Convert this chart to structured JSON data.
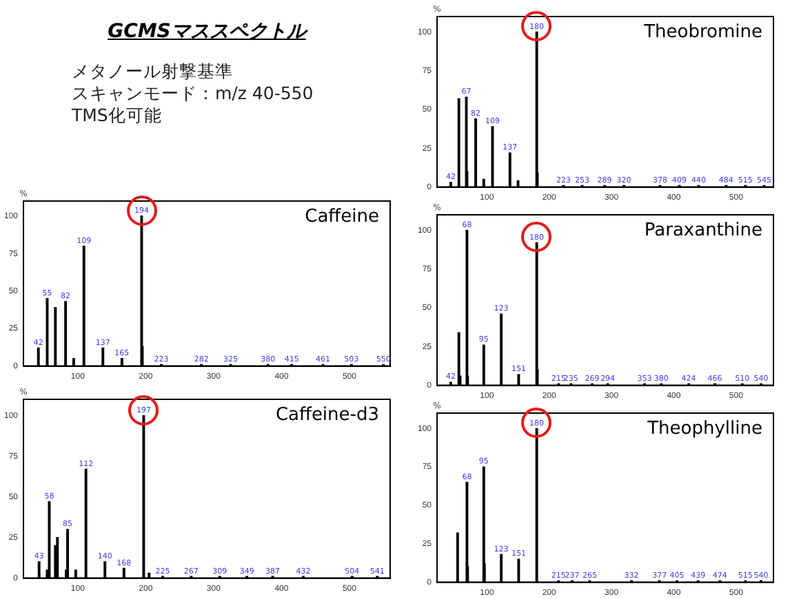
{
  "chart_data": [
    {
      "type": "other",
      "title": "GCMSマススペクトル",
      "annotations": [
        "メタノール射撃基準",
        "スキャンモード：m/z 40-550",
        "TMS化可能"
      ]
    },
    {
      "type": "bar",
      "title": "Theobromine",
      "ylabel": "%",
      "xlim": [
        20,
        560
      ],
      "ylim": [
        0,
        110
      ],
      "xticks": [
        100,
        200,
        300,
        400,
        500
      ],
      "yticks": [
        0,
        25,
        50,
        75,
        100
      ],
      "grid": false,
      "legend": false,
      "color": "#000000",
      "x": [
        42,
        55,
        67,
        68,
        82,
        95,
        109,
        137,
        150,
        179,
        180,
        181,
        223,
        253,
        289,
        320,
        378,
        409,
        440,
        484,
        515,
        545
      ],
      "values": [
        3,
        57,
        58,
        10,
        44,
        5,
        39,
        22,
        4,
        null,
        100,
        9,
        1,
        1,
        1,
        1,
        1,
        1,
        1,
        1,
        1,
        1
      ],
      "annotations": [
        {
          "text": "42",
          "x": 42,
          "y": 3
        },
        {
          "text": "67",
          "x": 67,
          "y": 58
        },
        {
          "text": "82",
          "x": 82,
          "y": 44
        },
        {
          "text": "109",
          "x": 109,
          "y": 39
        },
        {
          "text": "137",
          "x": 137,
          "y": 22
        },
        {
          "text": "180",
          "x": 180,
          "y": 100
        },
        {
          "text": "223",
          "x": 223,
          "y": 1
        },
        {
          "text": "253",
          "x": 253,
          "y": 1
        },
        {
          "text": "289",
          "x": 289,
          "y": 1
        },
        {
          "text": "320",
          "x": 320,
          "y": 1
        },
        {
          "text": "378",
          "x": 378,
          "y": 1
        },
        {
          "text": "409",
          "x": 409,
          "y": 1
        },
        {
          "text": "440",
          "x": 440,
          "y": 1
        },
        {
          "text": "484",
          "x": 484,
          "y": 1
        },
        {
          "text": "515",
          "x": 515,
          "y": 1
        },
        {
          "text": "545",
          "x": 545,
          "y": 1
        }
      ]
    },
    {
      "type": "bar",
      "title": "Caffeine",
      "ylabel": "%",
      "xlim": [
        20,
        560
      ],
      "ylim": [
        0,
        110
      ],
      "xticks": [
        100,
        200,
        300,
        400,
        500
      ],
      "yticks": [
        0,
        25,
        50,
        75,
        100
      ],
      "grid": false,
      "legend": false,
      "color": "#000000",
      "x": [
        42,
        55,
        67,
        82,
        94,
        109,
        137,
        165,
        193,
        194,
        195,
        223,
        282,
        325,
        380,
        415,
        461,
        503,
        550
      ],
      "values": [
        12,
        45,
        39,
        43,
        5,
        80,
        12,
        5,
        null,
        100,
        13,
        1,
        1,
        1,
        1,
        1,
        1,
        1,
        1
      ],
      "annotations": [
        {
          "text": "42",
          "x": 42,
          "y": 12
        },
        {
          "text": "55",
          "x": 55,
          "y": 45
        },
        {
          "text": "82",
          "x": 82,
          "y": 43
        },
        {
          "text": "109",
          "x": 109,
          "y": 80
        },
        {
          "text": "137",
          "x": 137,
          "y": 12
        },
        {
          "text": "165",
          "x": 165,
          "y": 5
        },
        {
          "text": "194",
          "x": 194,
          "y": 100
        },
        {
          "text": "223",
          "x": 223,
          "y": 1
        },
        {
          "text": "282",
          "x": 282,
          "y": 1
        },
        {
          "text": "325",
          "x": 325,
          "y": 1
        },
        {
          "text": "380",
          "x": 380,
          "y": 1
        },
        {
          "text": "415",
          "x": 415,
          "y": 1
        },
        {
          "text": "461",
          "x": 461,
          "y": 1
        },
        {
          "text": "503",
          "x": 503,
          "y": 1
        },
        {
          "text": "550",
          "x": 550,
          "y": 1
        }
      ]
    },
    {
      "type": "bar",
      "title": "Paraxanthine",
      "ylabel": "%",
      "xlim": [
        20,
        560
      ],
      "ylim": [
        0,
        110
      ],
      "xticks": [
        100,
        200,
        300,
        400,
        500
      ],
      "yticks": [
        0,
        25,
        50,
        75,
        100
      ],
      "grid": false,
      "legend": false,
      "color": "#000000",
      "x": [
        42,
        55,
        57,
        67,
        68,
        69,
        95,
        123,
        151,
        179,
        180,
        181,
        215,
        235,
        269,
        294,
        353,
        380,
        424,
        466,
        510,
        540
      ],
      "values": [
        2,
        34,
        6,
        null,
        100,
        6,
        26,
        46,
        7,
        null,
        92,
        10,
        1,
        1,
        1,
        1,
        1,
        1,
        1,
        1,
        1,
        1
      ],
      "annotations": [
        {
          "text": "42",
          "x": 42,
          "y": 2
        },
        {
          "text": "68",
          "x": 68,
          "y": 100
        },
        {
          "text": "95",
          "x": 95,
          "y": 26
        },
        {
          "text": "123",
          "x": 123,
          "y": 46
        },
        {
          "text": "151",
          "x": 151,
          "y": 7
        },
        {
          "text": "180",
          "x": 180,
          "y": 92
        },
        {
          "text": "215",
          "x": 215,
          "y": 1
        },
        {
          "text": "235",
          "x": 235,
          "y": 1
        },
        {
          "text": "269",
          "x": 269,
          "y": 1
        },
        {
          "text": "294",
          "x": 294,
          "y": 1
        },
        {
          "text": "353",
          "x": 353,
          "y": 1
        },
        {
          "text": "380",
          "x": 380,
          "y": 1
        },
        {
          "text": "424",
          "x": 424,
          "y": 1
        },
        {
          "text": "466",
          "x": 466,
          "y": 1
        },
        {
          "text": "510",
          "x": 510,
          "y": 1
        },
        {
          "text": "540",
          "x": 540,
          "y": 1
        }
      ]
    },
    {
      "type": "bar",
      "title": "Caffeine-d3",
      "ylabel": "%",
      "xlim": [
        20,
        560
      ],
      "ylim": [
        0,
        110
      ],
      "xticks": [
        100,
        200,
        300,
        400,
        500
      ],
      "yticks": [
        0,
        25,
        50,
        75,
        100
      ],
      "grid": false,
      "legend": false,
      "color": "#000000",
      "x": [
        43,
        55,
        58,
        67,
        70,
        83,
        85,
        97,
        112,
        140,
        168,
        196,
        197,
        205,
        225,
        267,
        309,
        349,
        387,
        432,
        504,
        541
      ],
      "values": [
        10,
        5,
        47,
        20,
        25,
        5,
        30,
        5,
        67,
        10,
        6,
        null,
        100,
        3,
        1,
        1,
        1,
        1,
        1,
        1,
        1,
        1
      ],
      "annotations": [
        {
          "text": "43",
          "x": 43,
          "y": 10
        },
        {
          "text": "58",
          "x": 58,
          "y": 47
        },
        {
          "text": "85",
          "x": 85,
          "y": 30
        },
        {
          "text": "112",
          "x": 112,
          "y": 67
        },
        {
          "text": "140",
          "x": 140,
          "y": 10
        },
        {
          "text": "168",
          "x": 168,
          "y": 6
        },
        {
          "text": "197",
          "x": 197,
          "y": 100
        },
        {
          "text": "225",
          "x": 225,
          "y": 1
        },
        {
          "text": "267",
          "x": 267,
          "y": 1
        },
        {
          "text": "309",
          "x": 309,
          "y": 1
        },
        {
          "text": "349",
          "x": 349,
          "y": 1
        },
        {
          "text": "387",
          "x": 387,
          "y": 1
        },
        {
          "text": "432",
          "x": 432,
          "y": 1
        },
        {
          "text": "504",
          "x": 504,
          "y": 1
        },
        {
          "text": "541",
          "x": 541,
          "y": 1
        }
      ]
    },
    {
      "type": "bar",
      "title": "Theophylline",
      "ylabel": "%",
      "xlim": [
        20,
        560
      ],
      "ylim": [
        0,
        110
      ],
      "xticks": [
        100,
        200,
        300,
        400,
        500
      ],
      "yticks": [
        0,
        25,
        50,
        75,
        100
      ],
      "grid": false,
      "legend": false,
      "color": "#000000",
      "x": [
        53,
        68,
        69,
        95,
        96,
        123,
        151,
        180,
        215,
        237,
        265,
        332,
        377,
        405,
        439,
        474,
        515,
        540
      ],
      "values": [
        32,
        65,
        10,
        75,
        12,
        18,
        15,
        100,
        1,
        1,
        1,
        1,
        1,
        1,
        1,
        1,
        1,
        1
      ],
      "annotations": [
        {
          "text": "68",
          "x": 68,
          "y": 65
        },
        {
          "text": "95",
          "x": 95,
          "y": 75
        },
        {
          "text": "123",
          "x": 123,
          "y": 18
        },
        {
          "text": "151",
          "x": 151,
          "y": 15
        },
        {
          "text": "180",
          "x": 180,
          "y": 100
        },
        {
          "text": "215",
          "x": 215,
          "y": 1
        },
        {
          "text": "237",
          "x": 237,
          "y": 1
        },
        {
          "text": "265",
          "x": 265,
          "y": 1
        },
        {
          "text": "332",
          "x": 332,
          "y": 1
        },
        {
          "text": "377",
          "x": 377,
          "y": 1
        },
        {
          "text": "405",
          "x": 405,
          "y": 1
        },
        {
          "text": "439",
          "x": 439,
          "y": 1
        },
        {
          "text": "474",
          "x": 474,
          "y": 1
        },
        {
          "text": "515",
          "x": 515,
          "y": 1
        },
        {
          "text": "540",
          "x": 540,
          "y": 1
        }
      ]
    }
  ]
}
